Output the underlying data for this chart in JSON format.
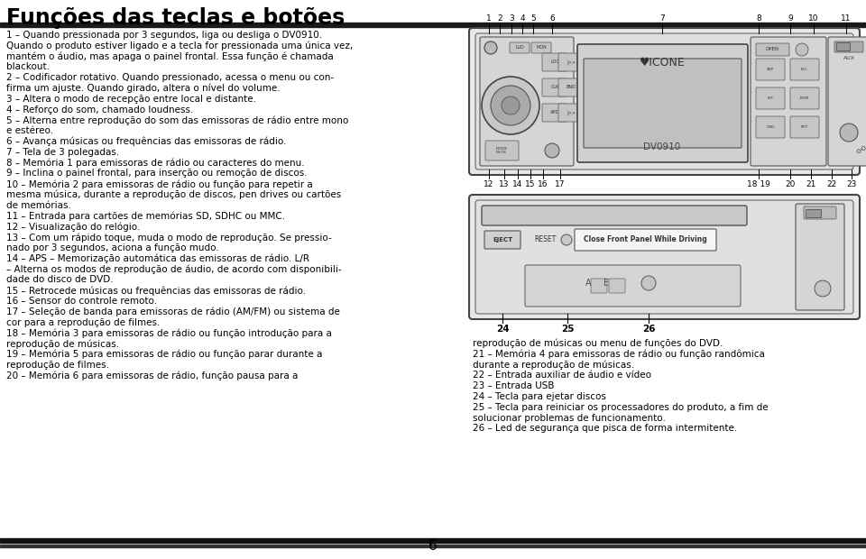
{
  "title": "Funções das teclas e botões",
  "bg_color": "#ffffff",
  "text_color": "#000000",
  "left_column_texts": [
    "1 – Quando pressionada por 3 segundos, liga ou desliga o DV0910.",
    "Quando o produto estiver ligado e a tecla for pressionada uma única vez,",
    "mantém o áudio, mas apaga o painel frontal. Essa função é chamada",
    "blackout.",
    "2 – Codificador rotativo. Quando pressionado, acessa o menu ou con-",
    "firma um ajuste. Quando girado, altera o nível do volume.",
    "3 – Altera o modo de recepção entre local e distante.",
    "4 – Reforço do som, chamado loudness.",
    "5 – Alterna entre reprodução do som das emissoras de rádio entre mono",
    "e estéreo.",
    "6 – Avança músicas ou frequências das emissoras de rádio.",
    "7 – Tela de 3 polegadas.",
    "8 – Memória 1 para emissoras de rádio ou caracteres do menu.",
    "9 – Inclina o painel frontal, para inserção ou remoção de discos.",
    "10 – Memória 2 para emissoras de rádio ou função para repetir a",
    "mesma música, durante a reprodução de discos, pen drives ou cartões",
    "de memórias.",
    "11 – Entrada para cartões de memórias SD, SDHC ou MMC.",
    "12 – Visualização do relógio.",
    "13 – Com um rápido toque, muda o modo de reprodução. Se pressio-",
    "nado por 3 segundos, aciona a função mudo.",
    "14 – APS – Memorização automática das emissoras de rádio. L/R",
    "– Alterna os modos de reprodução de áudio, de acordo com disponibili-",
    "dade do disco de DVD.",
    "15 – Retrocede músicas ou frequências das emissoras de rádio.",
    "16 – Sensor do controle remoto.",
    "17 – Seleção de banda para emissoras de rádio (AM/FM) ou sistema de",
    "cor para a reprodução de filmes.",
    "18 – Memória 3 para emissoras de rádio ou função introdução para a",
    "reprodução de músicas.",
    "19 – Memória 5 para emissoras de rádio ou função parar durante a",
    "reprodução de filmes.",
    "20 – Memória 6 para emissoras de rádio, função pausa para a"
  ],
  "right_bottom_texts": [
    "reprodução de músicas ou menu de funções do DVD.",
    "21 – Memória 4 para emissoras de rádio ou função randômica",
    "durante a reprodução de músicas.",
    "22 – Entrada auxiliar de áudio e vídeo",
    "23 – Entrada USB",
    "24 – Tecla para ejetar discos",
    "25 – Tecla para reiniciar os processadores do produto, a fim de",
    "solucionar problemas de funcionamento.",
    "26 – Led de segurança que pisca de forma intermitente."
  ],
  "page_number": "6"
}
